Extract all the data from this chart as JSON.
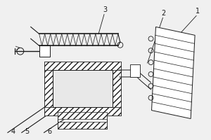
{
  "bg_color": "#f0f0f0",
  "line_color": "#1a1a1a",
  "label_color": "#1a1a1a",
  "figsize": [
    3.0,
    2.0
  ],
  "dpi": 100
}
